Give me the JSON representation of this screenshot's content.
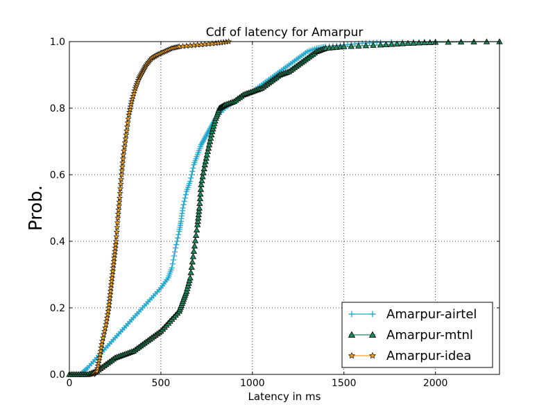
{
  "chart_data": {
    "type": "line",
    "title": "Cdf of latency for Amarpur",
    "xlabel": "Latency in ms",
    "ylabel": "Prob.",
    "xlim": [
      0,
      2350
    ],
    "ylim": [
      0,
      1.0
    ],
    "xticks": [
      0,
      500,
      1000,
      1500,
      2000
    ],
    "yticks": [
      0.0,
      0.2,
      0.4,
      0.6,
      0.8,
      1.0
    ],
    "xtick_labels": [
      "0",
      "500",
      "1000",
      "1500",
      "2000"
    ],
    "ytick_labels": [
      "0.0",
      "0.2",
      "0.4",
      "0.6",
      "0.8",
      "1.0"
    ],
    "grid": true,
    "legend_position": "bottom-right",
    "series": [
      {
        "name": "Amarpur-airtel",
        "color": "#1fa6cc",
        "marker": "plus",
        "x": [
          60,
          100,
          150,
          200,
          250,
          300,
          350,
          400,
          450,
          500,
          540,
          560,
          580,
          600,
          610,
          620,
          640,
          660,
          680,
          700,
          720,
          740,
          760,
          780,
          800,
          850,
          900,
          950,
          1000,
          1050,
          1100,
          1150,
          1200,
          1250,
          1300,
          1350,
          1400,
          1500,
          1600,
          1700,
          2000
        ],
        "y": [
          0.0,
          0.02,
          0.05,
          0.08,
          0.11,
          0.14,
          0.17,
          0.2,
          0.23,
          0.26,
          0.29,
          0.32,
          0.38,
          0.43,
          0.46,
          0.5,
          0.55,
          0.58,
          0.63,
          0.66,
          0.69,
          0.71,
          0.73,
          0.75,
          0.77,
          0.8,
          0.82,
          0.84,
          0.85,
          0.87,
          0.89,
          0.91,
          0.93,
          0.95,
          0.97,
          0.98,
          0.985,
          0.99,
          0.995,
          0.998,
          1.0
        ]
      },
      {
        "name": "Amarpur-mtnl",
        "color": "#1e8a5e",
        "marker": "triangle",
        "x": [
          0,
          50,
          100,
          150,
          200,
          250,
          300,
          350,
          400,
          450,
          500,
          550,
          600,
          620,
          640,
          660,
          680,
          700,
          710,
          720,
          740,
          760,
          780,
          800,
          820,
          850,
          900,
          950,
          1000,
          1050,
          1100,
          1150,
          1200,
          1250,
          1300,
          1350,
          1400,
          1500,
          1700,
          1850,
          2000,
          2350
        ],
        "y": [
          0.0,
          0.0,
          0.0,
          0.01,
          0.03,
          0.05,
          0.06,
          0.07,
          0.09,
          0.11,
          0.13,
          0.16,
          0.19,
          0.22,
          0.25,
          0.29,
          0.37,
          0.45,
          0.5,
          0.57,
          0.63,
          0.68,
          0.73,
          0.77,
          0.8,
          0.81,
          0.82,
          0.84,
          0.85,
          0.86,
          0.88,
          0.9,
          0.91,
          0.93,
          0.95,
          0.97,
          0.98,
          0.985,
          0.99,
          0.995,
          0.998,
          1.0
        ]
      },
      {
        "name": "Amarpur-idea",
        "color": "#f0a020",
        "marker": "star",
        "x": [
          130,
          150,
          165,
          180,
          200,
          215,
          225,
          235,
          245,
          255,
          265,
          275,
          285,
          295,
          310,
          325,
          340,
          360,
          380,
          400,
          420,
          450,
          480,
          520,
          560,
          600,
          700,
          800,
          870
        ],
        "y": [
          0.0,
          0.01,
          0.05,
          0.1,
          0.15,
          0.2,
          0.25,
          0.3,
          0.35,
          0.4,
          0.47,
          0.53,
          0.6,
          0.66,
          0.72,
          0.78,
          0.82,
          0.86,
          0.89,
          0.91,
          0.93,
          0.95,
          0.96,
          0.97,
          0.98,
          0.985,
          0.99,
          0.995,
          1.0
        ]
      }
    ]
  }
}
